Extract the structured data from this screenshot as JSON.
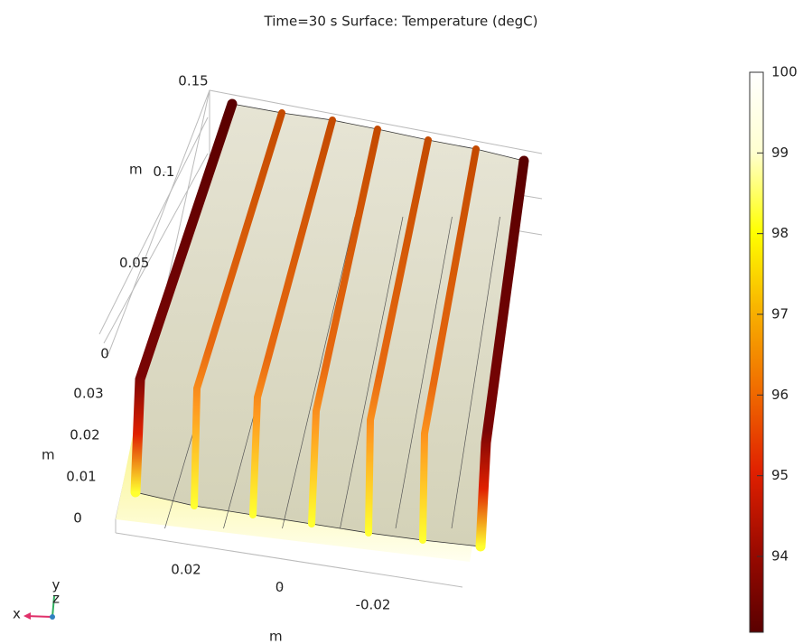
{
  "chart_data": {
    "type": "surface3d",
    "title": "Time=30 s   Surface: Temperature (degC)",
    "z_axis": {
      "label": "m",
      "lim": [
        0,
        0.15
      ],
      "ticks": [
        0.15,
        0.1,
        0.05,
        0
      ]
    },
    "y_axis": {
      "label": "m",
      "lim": [
        0,
        0.03
      ],
      "ticks": [
        0.03,
        0.02,
        0.01,
        0
      ]
    },
    "x_axis": {
      "label": "m",
      "lim": [
        0.02,
        -0.02
      ],
      "ticks": [
        0.02,
        0,
        -0.02
      ]
    },
    "colorbar": {
      "lim": [
        93.06,
        100
      ],
      "ticks": [
        100,
        99,
        98,
        97,
        96,
        95,
        94
      ],
      "colormap": [
        "#5a0000",
        "#9a0a00",
        "#e02000",
        "#f06a00",
        "#f8b000",
        "#ffff00",
        "#ffffd0",
        "#ffffff"
      ]
    },
    "triad": {
      "x": "x",
      "y": "y",
      "z": "z"
    }
  }
}
